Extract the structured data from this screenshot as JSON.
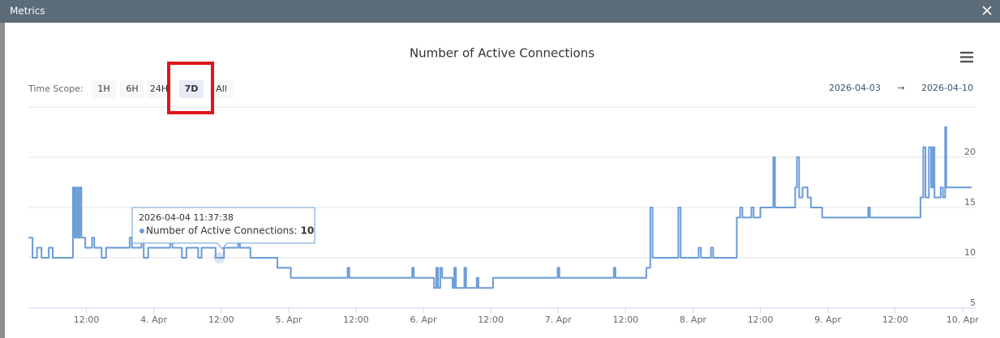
{
  "window": {
    "title": "Metrics"
  },
  "controls": {
    "label": "Time Scope:",
    "buttons": [
      "1H",
      "6H",
      "24H",
      "7D",
      "All"
    ],
    "selected": "7D"
  },
  "date_range": {
    "start": "2026-04-03",
    "separator": "→",
    "end": "2026-04-10"
  },
  "tooltip": {
    "x": "2026-04-04 11:37:38",
    "label": "Number of Active Connections:",
    "value": 10
  },
  "chart_data": {
    "type": "line",
    "title": "Number of Active Connections",
    "step": true,
    "grid": true,
    "xlim": [
      "2026-04-03 01:40",
      "2026-04-10 02:20"
    ],
    "xticks": [
      {
        "value": "2026-04-03 12:00",
        "label": "12:00"
      },
      {
        "value": "2026-04-04 00:00",
        "label": "4. Apr"
      },
      {
        "value": "2026-04-04 12:00",
        "label": "12:00"
      },
      {
        "value": "2026-04-05 00:00",
        "label": "5. Apr"
      },
      {
        "value": "2026-04-05 12:00",
        "label": "12:00"
      },
      {
        "value": "2026-04-06 00:00",
        "label": "6. Apr"
      },
      {
        "value": "2026-04-06 12:00",
        "label": "12:00"
      },
      {
        "value": "2026-04-07 00:00",
        "label": "7. Apr"
      },
      {
        "value": "2026-04-07 12:00",
        "label": "12:00"
      },
      {
        "value": "2026-04-08 00:00",
        "label": "8. Apr"
      },
      {
        "value": "2026-04-08 12:00",
        "label": "12:00"
      },
      {
        "value": "2026-04-09 00:00",
        "label": "9. Apr"
      },
      {
        "value": "2026-04-09 12:00",
        "label": "12:00"
      },
      {
        "value": "2026-04-10 00:00",
        "label": "10. Apr"
      }
    ],
    "ylim": [
      5,
      25
    ],
    "yticks": [
      5,
      10,
      15,
      20
    ],
    "x": [
      "2026-04-03 01:42",
      "2026-04-03 02:24",
      "2026-04-03 03:12",
      "2026-04-03 04:00",
      "2026-04-03 05:18",
      "2026-04-03 06:00",
      "2026-04-03 09:36",
      "2026-04-03 09:54",
      "2026-04-03 10:12",
      "2026-04-03 10:30",
      "2026-04-03 10:48",
      "2026-04-03 11:06",
      "2026-04-03 11:48",
      "2026-04-03 13:00",
      "2026-04-03 13:24",
      "2026-04-03 14:42",
      "2026-04-03 15:30",
      "2026-04-03 19:42",
      "2026-04-03 20:06",
      "2026-04-03 21:48",
      "2026-04-03 22:12",
      "2026-04-03 23:00",
      "2026-04-04 02:54",
      "2026-04-04 03:18",
      "2026-04-04 05:00",
      "2026-04-04 05:48",
      "2026-04-04 07:54",
      "2026-04-04 08:30",
      "2026-04-04 11:00",
      "2026-04-04 11:37",
      "2026-04-04 12:30",
      "2026-04-04 15:00",
      "2026-04-04 15:20",
      "2026-04-04 17:12",
      "2026-04-04 22:00",
      "2026-04-05 00:24",
      "2026-04-05 10:30",
      "2026-04-05 10:48",
      "2026-04-05 22:00",
      "2026-04-05 22:18",
      "2026-04-06 01:54",
      "2026-04-06 02:18",
      "2026-04-06 02:36",
      "2026-04-06 03:00",
      "2026-04-06 03:20",
      "2026-04-06 05:12",
      "2026-04-06 05:30",
      "2026-04-06 05:48",
      "2026-04-06 07:18",
      "2026-04-06 07:36",
      "2026-04-06 09:30",
      "2026-04-06 09:48",
      "2026-04-06 12:24",
      "2026-04-06 23:54",
      "2026-04-07 00:12",
      "2026-04-07 09:54",
      "2026-04-07 10:12",
      "2026-04-07 15:42",
      "2026-04-07 16:24",
      "2026-04-07 16:48",
      "2026-04-07 21:24",
      "2026-04-07 21:48",
      "2026-04-08 01:00",
      "2026-04-08 01:24",
      "2026-04-08 03:12",
      "2026-04-08 03:36",
      "2026-04-08 07:48",
      "2026-04-08 08:24",
      "2026-04-08 08:48",
      "2026-04-08 10:24",
      "2026-04-08 10:48",
      "2026-04-08 12:00",
      "2026-04-08 14:18",
      "2026-04-08 14:36",
      "2026-04-08 18:12",
      "2026-04-08 18:30",
      "2026-04-08 18:54",
      "2026-04-08 19:30",
      "2026-04-08 20:24",
      "2026-04-08 21:00",
      "2026-04-08 23:00",
      "2026-04-09 07:12",
      "2026-04-09 07:30",
      "2026-04-09 16:30",
      "2026-04-09 17:00",
      "2026-04-09 17:24",
      "2026-04-09 18:00",
      "2026-04-09 18:24",
      "2026-04-09 18:42",
      "2026-04-09 19:00",
      "2026-04-09 20:06",
      "2026-04-09 20:30",
      "2026-04-09 20:54",
      "2026-04-09 21:06",
      "2026-04-10 01:36"
    ],
    "series": [
      {
        "name": "Number of Active Connections",
        "color": "#6a9bd6",
        "values": [
          12,
          10,
          11,
          10,
          11,
          10,
          17,
          12,
          17,
          12,
          17,
          12,
          11,
          12,
          11,
          10,
          11,
          12,
          11,
          12,
          10,
          11,
          12,
          11,
          10,
          11,
          10,
          11,
          10,
          10,
          11,
          12,
          11,
          10,
          9,
          8,
          9,
          8,
          9,
          8,
          7,
          9,
          7,
          9,
          8,
          7,
          9,
          7,
          9,
          7,
          8,
          7,
          8,
          9,
          8,
          9,
          8,
          9,
          15,
          10,
          15,
          10,
          11,
          10,
          11,
          10,
          14,
          15,
          14,
          15,
          14,
          15,
          20,
          15,
          17,
          20,
          16,
          17,
          16,
          15,
          14,
          15,
          14,
          16,
          21,
          16,
          21,
          17,
          21,
          16,
          17,
          16,
          23,
          17,
          17
        ]
      }
    ]
  }
}
